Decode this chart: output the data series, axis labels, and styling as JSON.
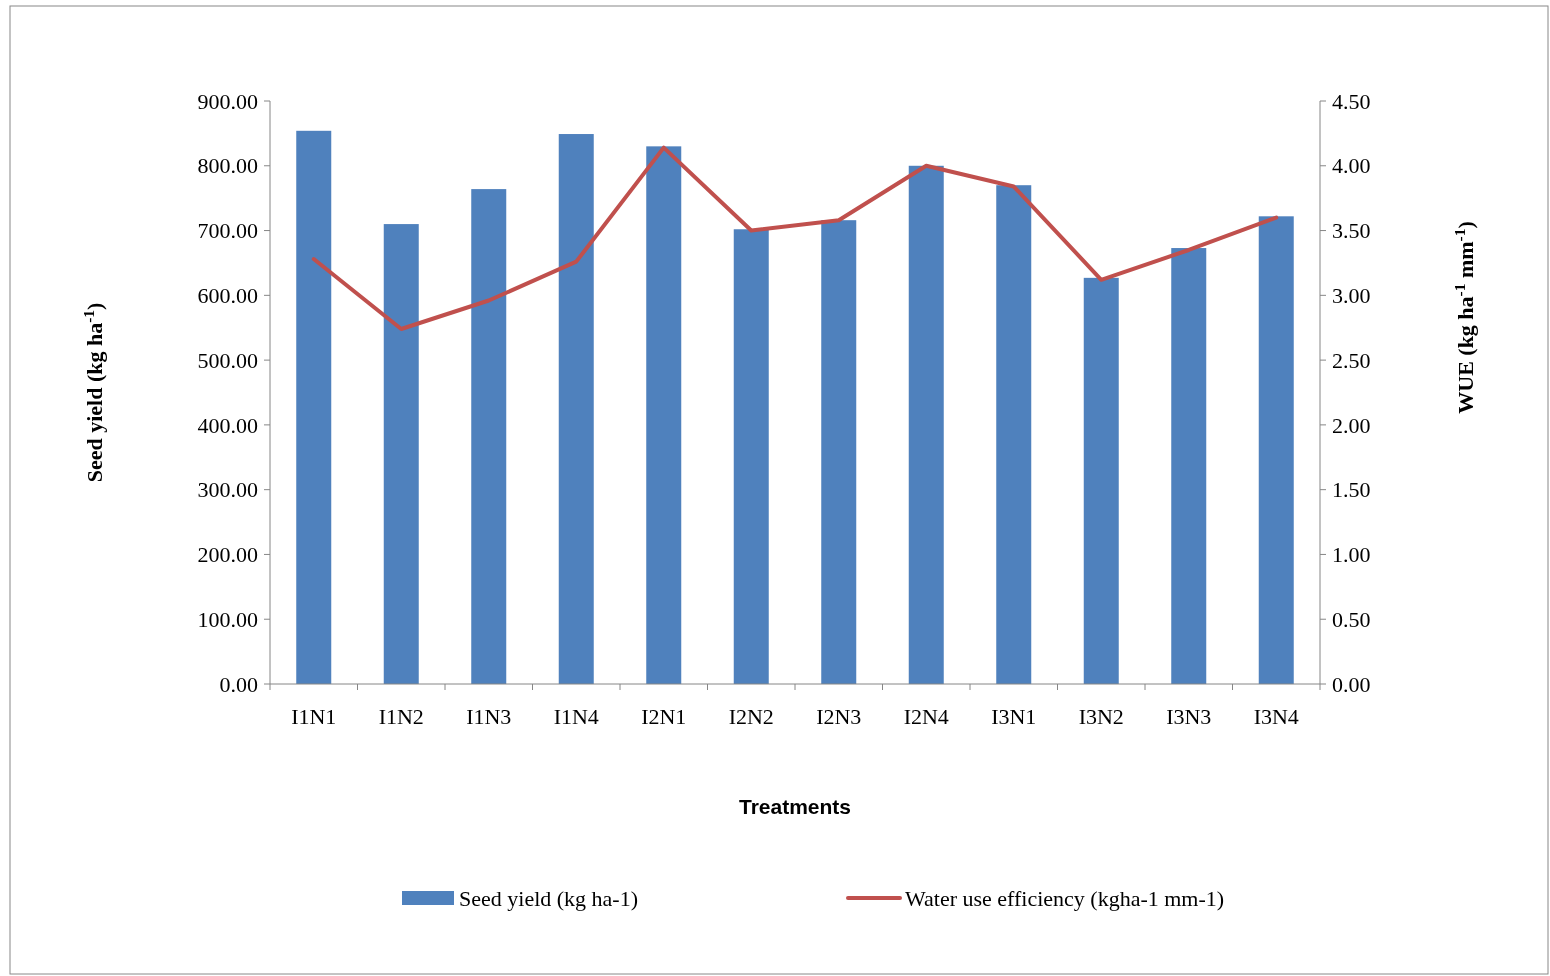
{
  "chart_data": {
    "type": "bar",
    "categories": [
      "I1N1",
      "I1N2",
      "I1N3",
      "I1N4",
      "I2N1",
      "I2N2",
      "I2N3",
      "I2N4",
      "I3N1",
      "I3N2",
      "I3N3",
      "I3N4"
    ],
    "xlabel": "Treatments",
    "ylabel": "Seed yield (kg ha$^{-1}$)",
    "y2label": "WUE (kg ha$^{-1}$ mm$^{-1}$)",
    "series": [
      {
        "name": "Seed yield (kg ha-1)",
        "color": "#4f81bd",
        "values": [
          854,
          710,
          764,
          849,
          830,
          702,
          716,
          800,
          770,
          627,
          673,
          722
        ]
      },
      {
        "name": "Water use efficiency (kgha-1 mm-1)",
        "type": "line",
        "axis": "y2",
        "color": "#c0504d",
        "values": [
          3.28,
          2.74,
          2.96,
          3.26,
          4.14,
          3.5,
          3.58,
          4.0,
          3.84,
          3.12,
          3.35,
          3.6
        ]
      }
    ],
    "ylim": [
      0,
      900
    ],
    "yticks": [
      {
        "value": 0,
        "label": "0.00"
      },
      {
        "value": 100,
        "label": "100.00"
      },
      {
        "value": 200,
        "label": "200.00"
      },
      {
        "value": 300,
        "label": "300.00"
      },
      {
        "value": 400,
        "label": "400.00"
      },
      {
        "value": 500,
        "label": "500.00"
      },
      {
        "value": 600,
        "label": "600.00"
      },
      {
        "value": 700,
        "label": "700.00"
      },
      {
        "value": 800,
        "label": "800.00"
      },
      {
        "value": 900,
        "label": "900.00"
      }
    ],
    "y2lim": [
      0,
      4.5
    ],
    "y2ticks": [
      {
        "value": 0,
        "label": "0.00"
      },
      {
        "value": 0.5,
        "label": "0.50"
      },
      {
        "value": 1,
        "label": "1.00"
      },
      {
        "value": 1.5,
        "label": "1.50"
      },
      {
        "value": 2,
        "label": "2.00"
      },
      {
        "value": 2.5,
        "label": "2.50"
      },
      {
        "value": 3,
        "label": "3.00"
      },
      {
        "value": 3.5,
        "label": "3.50"
      },
      {
        "value": 4,
        "label": "4.00"
      },
      {
        "value": 4.5,
        "label": "4.50"
      }
    ],
    "legend": "bottom",
    "marker": "none",
    "line_style": "solid"
  }
}
